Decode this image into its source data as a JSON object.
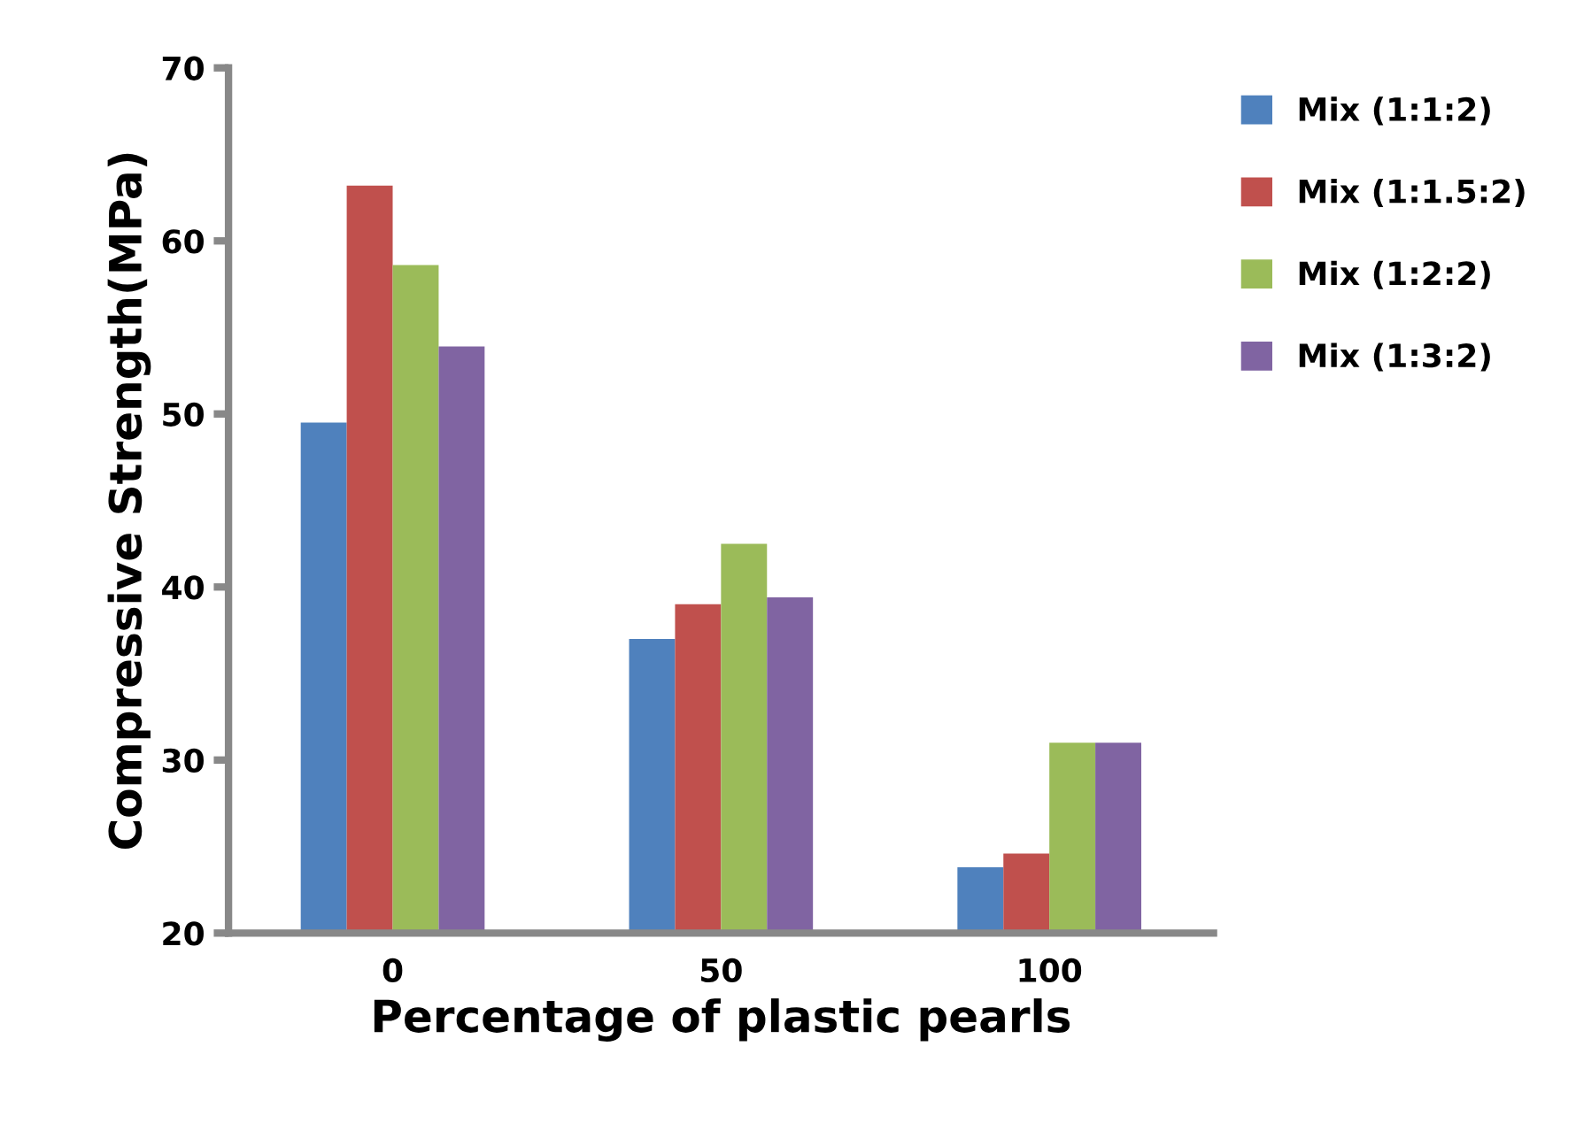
{
  "chart_data": {
    "type": "bar",
    "xlabel": "Percentage of plastic pearls",
    "ylabel": "Compressive Strength(MPa)",
    "categories": [
      "0",
      "50",
      "100"
    ],
    "series": [
      {
        "name": "Mix (1:1:2)",
        "color": "#4f81bd",
        "values": [
          49.5,
          37.0,
          23.8
        ]
      },
      {
        "name": "Mix (1:1.5:2)",
        "color": "#c0504d",
        "values": [
          63.2,
          39.0,
          24.6
        ]
      },
      {
        "name": "Mix (1:2:2)",
        "color": "#9bbb59",
        "values": [
          58.6,
          42.5,
          31.0
        ]
      },
      {
        "name": "Mix (1:3:2)",
        "color": "#8064a2",
        "values": [
          53.9,
          39.4,
          31.0
        ]
      }
    ],
    "ylim": [
      20,
      70
    ],
    "yticks": [
      20,
      30,
      40,
      50,
      60,
      70
    ],
    "grid": false,
    "legend": "right"
  }
}
